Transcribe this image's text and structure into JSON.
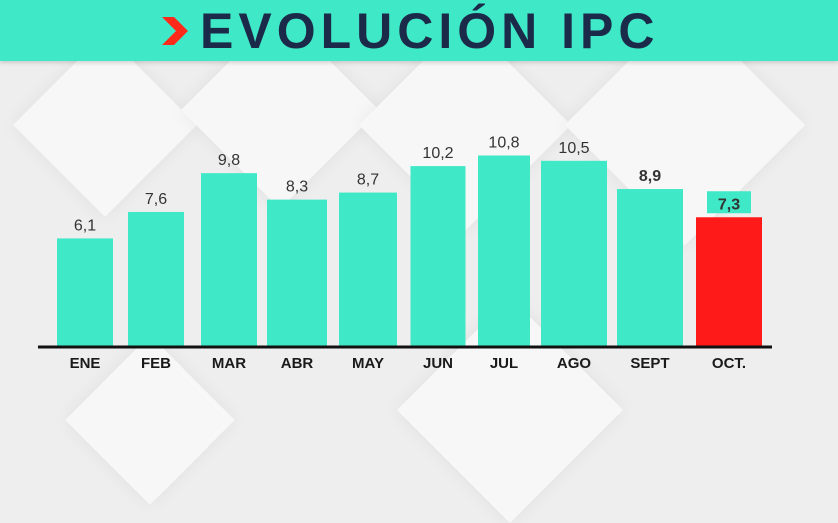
{
  "title": "EVOLUCIÓN IPC",
  "colors": {
    "banner": "#3fe8c6",
    "title_text": "#1c2a4a",
    "chevron": "#ff2a1a",
    "bar": "#3fe8c6",
    "highlight_bar": "#ff1a1a",
    "highlight_label_bg": "#3fe8c6",
    "highlight_label_text": "#e82020"
  },
  "chart_data": {
    "type": "bar",
    "categories": [
      "ENE",
      "FEB",
      "MAR",
      "ABR",
      "MAY",
      "JUN",
      "JUL",
      "AGO",
      "SEPT",
      "OCT."
    ],
    "values": [
      6.1,
      7.6,
      9.8,
      8.3,
      8.7,
      10.2,
      10.8,
      10.5,
      8.9,
      7.3
    ],
    "value_labels": [
      "6,1",
      "7,6",
      "9,8",
      "8,3",
      "8,7",
      "10,2",
      "10,8",
      "10,5",
      "8,9",
      "7,3"
    ],
    "highlight_index": 9,
    "emphasis_indices": [
      8,
      9
    ],
    "ylim": [
      0,
      11
    ],
    "grid": false,
    "xlabel": "",
    "ylabel": ""
  }
}
